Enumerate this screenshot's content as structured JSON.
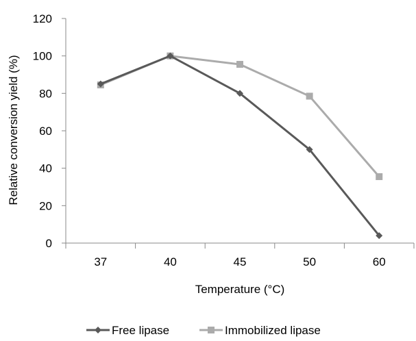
{
  "chart_data": {
    "type": "line",
    "categories": [
      "37",
      "40",
      "45",
      "50",
      "60"
    ],
    "xlabel": "Temperature (°C)",
    "ylabel": "Relative conversion yield (%)",
    "ylim": [
      0,
      120
    ],
    "yticks": [
      "0",
      "20",
      "40",
      "60",
      "80",
      "100",
      "120"
    ],
    "grid": false,
    "legend_position": "bottom",
    "series": [
      {
        "name": "Free lipase",
        "values": [
          85,
          100,
          80,
          50,
          4
        ],
        "color": "#595959",
        "marker": "diamond"
      },
      {
        "name": "Immobilized lipase",
        "values": [
          84.5,
          100,
          95.5,
          78.5,
          35.5
        ],
        "color": "#ababab",
        "marker": "square"
      }
    ]
  }
}
